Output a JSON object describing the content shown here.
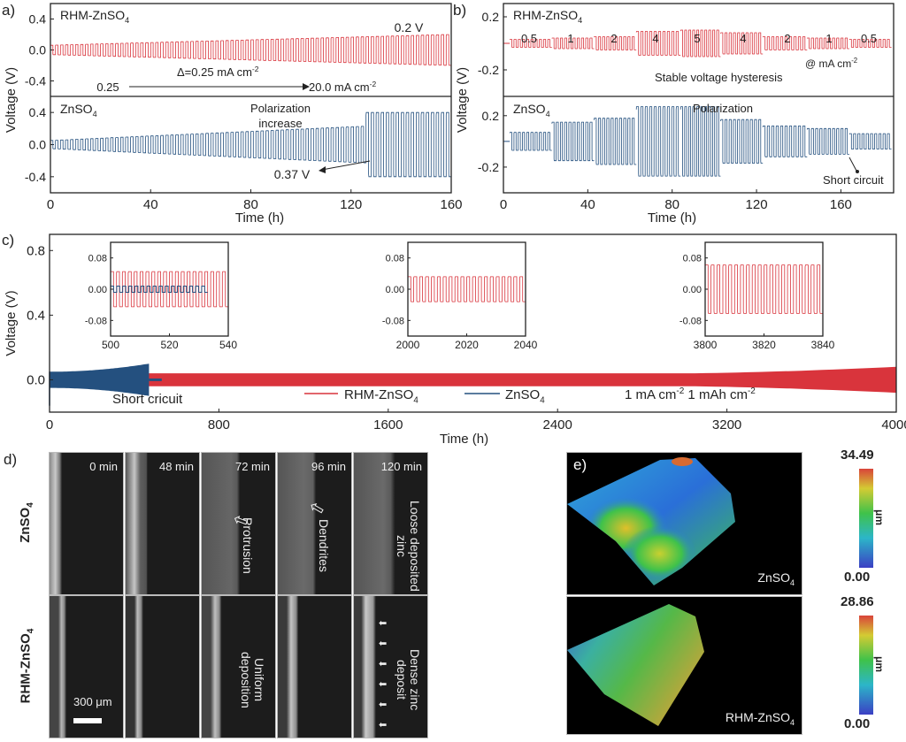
{
  "panel_labels": {
    "a": "a)",
    "b": "b)",
    "c": "c)",
    "d": "d)",
    "e": "e)"
  },
  "colors": {
    "rhm": "#d9343c",
    "znso4": "#24507f",
    "axis": "#222222"
  },
  "chart_data": [
    {
      "id": "a",
      "type": "line",
      "title": "",
      "xlabel": "Time (h)",
      "ylabel": "Voltage (V)",
      "xlim": [
        0,
        160
      ],
      "xticks": [
        "0",
        "40",
        "80",
        "120",
        "160"
      ],
      "subplots": [
        {
          "name": "RHM-ZnSO4",
          "label": "RHM-ZnSO",
          "label_sub": "4",
          "ylim": [
            -0.6,
            0.6
          ],
          "yticks": [
            "0.4",
            "0.0",
            "-0.4"
          ],
          "amplitude_start": 0.06,
          "amplitude_end": 0.2,
          "cycles": 80,
          "annotations": {
            "end_voltage": "0.2 V",
            "delta": "Δ=0.25 mA cm",
            "delta_sup": "-2",
            "start": "0.25",
            "end": "20.0 mA cm",
            "end_sup": "-2"
          }
        },
        {
          "name": "ZnSO4",
          "label": "ZnSO",
          "label_sub": "4",
          "ylim": [
            -0.6,
            0.6
          ],
          "yticks": [
            "0.4",
            "0.0",
            "-0.4"
          ],
          "amplitude_start": 0.05,
          "amplitude_jump_time": 127,
          "amplitude_before_jump": 0.23,
          "amplitude_after_jump": 0.4,
          "cycles": 80,
          "annotations": {
            "title1": "Polarization",
            "title2": "increase",
            "value": "0.37 V"
          }
        }
      ]
    },
    {
      "id": "b",
      "type": "line",
      "xlabel": "Time (h)",
      "ylabel": "Voltage (V)",
      "xlim": [
        0,
        185
      ],
      "xticks": [
        "0",
        "40",
        "80",
        "120",
        "160"
      ],
      "subplots": [
        {
          "name": "RHM-ZnSO4",
          "label": "RHM-ZnSO",
          "label_sub": "4",
          "ylim": [
            -0.4,
            0.3
          ],
          "yticks": [
            "0.2",
            "-0.2"
          ],
          "current_steps": [
            "0.5",
            "1",
            "2",
            "4",
            "5",
            "4",
            "2",
            "1",
            "0.5"
          ],
          "step_amplitudes": [
            0.03,
            0.04,
            0.05,
            0.09,
            0.1,
            0.08,
            0.05,
            0.04,
            0.03
          ],
          "annotations": {
            "unit": "@ mA cm",
            "unit_sup": "-2",
            "note": "Stable voltage hysteresis"
          }
        },
        {
          "name": "ZnSO4",
          "label": "ZnSO",
          "label_sub": "4",
          "ylim": [
            -0.4,
            0.35
          ],
          "yticks": [
            "0.2",
            "-0.2"
          ],
          "step_amplitudes": [
            0.07,
            0.15,
            0.18,
            0.27,
            0.27,
            0.17,
            0.12,
            0.1,
            0.06
          ],
          "annotations": {
            "title": "Polarization",
            "note": "Short circuit"
          }
        }
      ]
    },
    {
      "id": "c",
      "type": "line",
      "xlabel": "Time (h)",
      "ylabel": "Voltage (V)",
      "xlim": [
        0,
        4000
      ],
      "ylim": [
        -0.2,
        0.9
      ],
      "xticks": [
        "0",
        "800",
        "1600",
        "2400",
        "3200",
        "4000"
      ],
      "yticks": [
        "0.8",
        "0.4",
        "0.0"
      ],
      "series": [
        {
          "name": "RHM-ZnSO4",
          "legend": "RHM-ZnSO",
          "legend_sub": "4",
          "t_end": 4000,
          "amp_start": 0.04,
          "amp_end": 0.08
        },
        {
          "name": "ZnSO4",
          "legend": "ZnSO",
          "legend_sub": "4",
          "t_end": 530,
          "amp_start": 0.05,
          "amp_end": 0.1
        }
      ],
      "annotations": {
        "short": "Short cricuit",
        "cond1": "1 mA cm",
        "cond1_sup": "-2",
        "cond2": " 1 mAh cm",
        "cond2_sup": "-2"
      },
      "insets": [
        {
          "xlim": [
            500,
            540
          ],
          "xticks": [
            "500",
            "520",
            "540"
          ],
          "ylim": [
            -0.12,
            0.12
          ],
          "yticks": [
            "0.08",
            "0.00",
            "-0.08"
          ],
          "rhm_amp": 0.045,
          "zn_amp": 0.008,
          "zn_end": 533
        },
        {
          "xlim": [
            2000,
            2040
          ],
          "xticks": [
            "2000",
            "2020",
            "2040"
          ],
          "ylim": [
            -0.12,
            0.12
          ],
          "yticks": [
            "0.08",
            "0.00",
            "-0.08"
          ],
          "rhm_amp": 0.032
        },
        {
          "xlim": [
            3800,
            3840
          ],
          "xticks": [
            "3800",
            "3820",
            "3840"
          ],
          "ylim": [
            -0.12,
            0.12
          ],
          "yticks": [
            "0.08",
            "0.00",
            "-0.08"
          ],
          "rhm_amp": 0.062
        }
      ]
    }
  ],
  "panel_d": {
    "rows": [
      {
        "label": "ZnSO",
        "sub": "4"
      },
      {
        "label": "RHM-ZnSO",
        "sub": "4"
      }
    ],
    "times": [
      "0 min",
      "48 min",
      "72 min",
      "96 min",
      "120 min"
    ],
    "top_notes": [
      "",
      "",
      "Protrusion",
      "Dendrites",
      "Loose deposited zinc"
    ],
    "bottom_notes": [
      "",
      "",
      "Uniform deposition",
      "",
      "Dense zinc deposit"
    ],
    "scale_bar": "300 μm"
  },
  "panel_e": {
    "maps": [
      {
        "name": "ZnSO",
        "sub": "4",
        "max": "34.49",
        "min": "0.00",
        "unit": "μm"
      },
      {
        "name": "RHM-ZnSO",
        "sub": "4",
        "max": "28.86",
        "min": "0.00",
        "unit": "μm"
      }
    ]
  }
}
